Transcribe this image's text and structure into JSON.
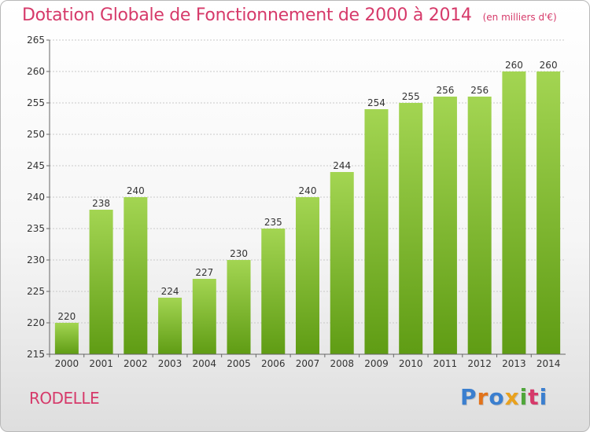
{
  "header": {
    "title": "Dotation Globale de Fonctionnement de 2000 à 2014",
    "unit": "(en milliers d'€)"
  },
  "footer": {
    "town": "RODELLE",
    "logo": {
      "letters": [
        "P",
        "r",
        "o",
        "x",
        "i",
        "t",
        "i"
      ],
      "colors": [
        "#3b7fcf",
        "#e2731b",
        "#3b7fcf",
        "#e9a11d",
        "#4fa63a",
        "#d63a6a",
        "#3b7fcf"
      ]
    }
  },
  "colors": {
    "title": "#d63a6a",
    "bar_light": "#a3d552",
    "bar_dark": "#5f9c14",
    "grid": "#c9c9c9"
  },
  "chart_data": {
    "type": "bar",
    "categories": [
      "2000",
      "2001",
      "2002",
      "2003",
      "2004",
      "2005",
      "2006",
      "2007",
      "2008",
      "2009",
      "2010",
      "2011",
      "2012",
      "2013",
      "2014"
    ],
    "values": [
      220,
      238,
      240,
      224,
      227,
      230,
      235,
      240,
      244,
      254,
      255,
      256,
      256,
      260,
      260
    ],
    "ylim": [
      215,
      265
    ],
    "yticks": [
      215,
      220,
      225,
      230,
      235,
      240,
      245,
      250,
      255,
      260,
      265
    ],
    "grid": true,
    "data_labels": true
  }
}
